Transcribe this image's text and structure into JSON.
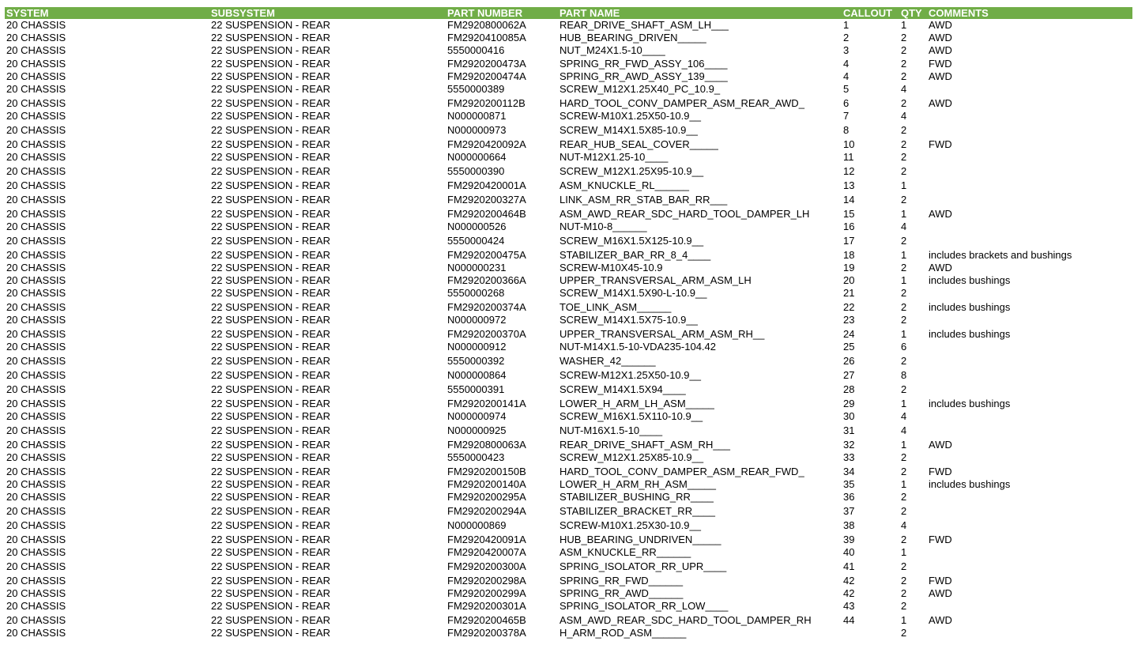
{
  "header_color": "#70AD47",
  "columns": [
    "SYSTEM",
    "SUBSYSTEM",
    "PART NUMBER",
    "PART NAME",
    "CALLOUT",
    "QTY",
    "COMMENTS"
  ],
  "rows": [
    [
      "20 CHASSIS",
      "22 SUSPENSION - REAR",
      "FM2920800062A",
      "REAR_DRIVE_SHAFT_ASM_LH___",
      "1",
      "1",
      "AWD"
    ],
    [
      "20 CHASSIS",
      "22 SUSPENSION - REAR",
      "FM2920410085A",
      "HUB_BEARING_DRIVEN_____",
      "2",
      "2",
      "AWD"
    ],
    [
      "20 CHASSIS",
      "22 SUSPENSION - REAR",
      "5550000416",
      "NUT_M24X1.5-10____",
      "3",
      "2",
      "AWD"
    ],
    [
      "20 CHASSIS",
      "22 SUSPENSION - REAR",
      "FM2920200473A",
      "SPRING_RR_FWD_ASSY_106____",
      "4",
      "2",
      "FWD"
    ],
    [
      "20 CHASSIS",
      "22 SUSPENSION - REAR",
      "FM2920200474A",
      "SPRING_RR_AWD_ASSY_139____",
      "4",
      "2",
      "AWD"
    ],
    [
      "20 CHASSIS",
      "22 SUSPENSION - REAR",
      "5550000389",
      "SCREW_M12X1.25X40_PC_10.9_",
      "5",
      "4",
      ""
    ],
    [
      "20 CHASSIS",
      "22 SUSPENSION - REAR",
      "FM2920200112B",
      "HARD_TOOL_CONV_DAMPER_ASM_REAR_AWD_",
      "6",
      "2",
      "AWD"
    ],
    [
      "20 CHASSIS",
      "22 SUSPENSION - REAR",
      "N000000871",
      "SCREW-M10X1.25X50-10.9__",
      "7",
      "4",
      ""
    ],
    [
      "20 CHASSIS",
      "22 SUSPENSION - REAR",
      "N000000973",
      "SCREW_M14X1.5X85-10.9__",
      "8",
      "2",
      ""
    ],
    [
      "20 CHASSIS",
      "22 SUSPENSION - REAR",
      "FM2920420092A",
      "REAR_HUB_SEAL_COVER_____",
      "10",
      "2",
      "FWD"
    ],
    [
      "20 CHASSIS",
      "22 SUSPENSION - REAR",
      "N000000664",
      "NUT-M12X1.25-10____",
      "11",
      "2",
      ""
    ],
    [
      "20 CHASSIS",
      "22 SUSPENSION - REAR",
      "5550000390",
      "SCREW_M12X1.25X95-10.9__",
      "12",
      "2",
      ""
    ],
    [
      "20 CHASSIS",
      "22 SUSPENSION - REAR",
      "FM2920420001A",
      "ASM_KNUCKLE_RL______",
      "13",
      "1",
      ""
    ],
    [
      "20 CHASSIS",
      "22 SUSPENSION - REAR",
      "FM2920200327A",
      "LINK_ASM_RR_STAB_BAR_RR___",
      "14",
      "2",
      ""
    ],
    [
      "20 CHASSIS",
      "22 SUSPENSION - REAR",
      "FM2920200464B",
      "ASM_AWD_REAR_SDC_HARD_TOOL_DAMPER_LH",
      "15",
      "1",
      "AWD"
    ],
    [
      "20 CHASSIS",
      "22 SUSPENSION - REAR",
      "N000000526",
      "NUT-M10-8______",
      "16",
      "4",
      ""
    ],
    [
      "20 CHASSIS",
      "22 SUSPENSION - REAR",
      "5550000424",
      "SCREW_M16X1.5X125-10.9__",
      "17",
      "2",
      ""
    ],
    [
      "20 CHASSIS",
      "22 SUSPENSION - REAR",
      "FM2920200475A",
      "STABILIZER_BAR_RR_8_4____",
      "18",
      "1",
      "includes brackets and bushings"
    ],
    [
      "20 CHASSIS",
      "22 SUSPENSION - REAR",
      "N000000231",
      "SCREW-M10X45-10.9",
      "19",
      "2",
      "AWD"
    ],
    [
      "20 CHASSIS",
      "22 SUSPENSION - REAR",
      "FM2920200366A",
      "UPPER_TRANSVERSAL_ARM_ASM_LH",
      "20",
      "1",
      "includes bushings"
    ],
    [
      "20 CHASSIS",
      "22 SUSPENSION - REAR",
      "5550000268",
      "SCREW_M14X1.5X90-L-10.9__",
      "21",
      "2",
      ""
    ],
    [
      "20 CHASSIS",
      "22 SUSPENSION - REAR",
      "FM2920200374A",
      "TOE_LINK_ASM______",
      "22",
      "2",
      "includes bushings"
    ],
    [
      "20 CHASSIS",
      "22 SUSPENSION - REAR",
      "N000000972",
      "SCREW_M14X1.5X75-10.9__",
      "23",
      "2",
      ""
    ],
    [
      "20 CHASSIS",
      "22 SUSPENSION - REAR",
      "FM2920200370A",
      "UPPER_TRANSVERSAL_ARM_ASM_RH__",
      "24",
      "1",
      "includes bushings"
    ],
    [
      "20 CHASSIS",
      "22 SUSPENSION - REAR",
      "N000000912",
      "NUT-M14X1.5-10-VDA235-104.42",
      "25",
      "6",
      ""
    ],
    [
      "20 CHASSIS",
      "22 SUSPENSION - REAR",
      "5550000392",
      "WASHER_42______",
      "26",
      "2",
      ""
    ],
    [
      "20 CHASSIS",
      "22 SUSPENSION - REAR",
      "N000000864",
      "SCREW-M12X1.25X50-10.9__",
      "27",
      "8",
      ""
    ],
    [
      "20 CHASSIS",
      "22 SUSPENSION - REAR",
      "5550000391",
      "SCREW_M14X1.5X94____",
      "28",
      "2",
      ""
    ],
    [
      "20 CHASSIS",
      "22 SUSPENSION - REAR",
      "FM2920200141A",
      "LOWER_H_ARM_LH_ASM_____",
      "29",
      "1",
      "includes bushings"
    ],
    [
      "20 CHASSIS",
      "22 SUSPENSION - REAR",
      "N000000974",
      "SCREW_M16X1.5X110-10.9__",
      "30",
      "4",
      ""
    ],
    [
      "20 CHASSIS",
      "22 SUSPENSION - REAR",
      "N000000925",
      "NUT-M16X1.5-10____",
      "31",
      "4",
      ""
    ],
    [
      "20 CHASSIS",
      "22 SUSPENSION - REAR",
      "FM2920800063A",
      "REAR_DRIVE_SHAFT_ASM_RH___",
      "32",
      "1",
      "AWD"
    ],
    [
      "20 CHASSIS",
      "22 SUSPENSION - REAR",
      "5550000423",
      "SCREW_M12X1.25X85-10.9__",
      "33",
      "2",
      ""
    ],
    [
      "20 CHASSIS",
      "22 SUSPENSION - REAR",
      "FM2920200150B",
      "HARD_TOOL_CONV_DAMPER_ASM_REAR_FWD_",
      "34",
      "2",
      "FWD"
    ],
    [
      "20 CHASSIS",
      "22 SUSPENSION - REAR",
      "FM2920200140A",
      "LOWER_H_ARM_RH_ASM_____",
      "35",
      "1",
      "includes bushings"
    ],
    [
      "20 CHASSIS",
      "22 SUSPENSION - REAR",
      "FM2920200295A",
      "STABILIZER_BUSHING_RR____",
      "36",
      "2",
      ""
    ],
    [
      "20 CHASSIS",
      "22 SUSPENSION - REAR",
      "FM2920200294A",
      "STABILIZER_BRACKET_RR____",
      "37",
      "2",
      ""
    ],
    [
      "20 CHASSIS",
      "22 SUSPENSION - REAR",
      "N000000869",
      "SCREW-M10X1.25X30-10.9__",
      "38",
      "4",
      ""
    ],
    [
      "20 CHASSIS",
      "22 SUSPENSION - REAR",
      "FM2920420091A",
      "HUB_BEARING_UNDRIVEN_____",
      "39",
      "2",
      "FWD"
    ],
    [
      "20 CHASSIS",
      "22 SUSPENSION - REAR",
      "FM2920420007A",
      "ASM_KNUCKLE_RR______",
      "40",
      "1",
      ""
    ],
    [
      "20 CHASSIS",
      "22 SUSPENSION - REAR",
      "FM2920200300A",
      "SPRING_ISOLATOR_RR_UPR____",
      "41",
      "2",
      ""
    ],
    [
      "20 CHASSIS",
      "22 SUSPENSION - REAR",
      "FM2920200298A",
      "SPRING_RR_FWD______",
      "42",
      "2",
      "FWD"
    ],
    [
      "20 CHASSIS",
      "22 SUSPENSION - REAR",
      "FM2920200299A",
      "SPRING_RR_AWD______",
      "42",
      "2",
      "AWD"
    ],
    [
      "20 CHASSIS",
      "22 SUSPENSION - REAR",
      "FM2920200301A",
      "SPRING_ISOLATOR_RR_LOW____",
      "43",
      "2",
      ""
    ],
    [
      "20 CHASSIS",
      "22 SUSPENSION - REAR",
      "FM2920200465B",
      "ASM_AWD_REAR_SDC_HARD_TOOL_DAMPER_RH",
      "44",
      "1",
      "AWD"
    ],
    [
      "20 CHASSIS",
      "22 SUSPENSION - REAR",
      "FM2920200378A",
      "H_ARM_ROD_ASM______",
      "",
      "2",
      ""
    ]
  ]
}
